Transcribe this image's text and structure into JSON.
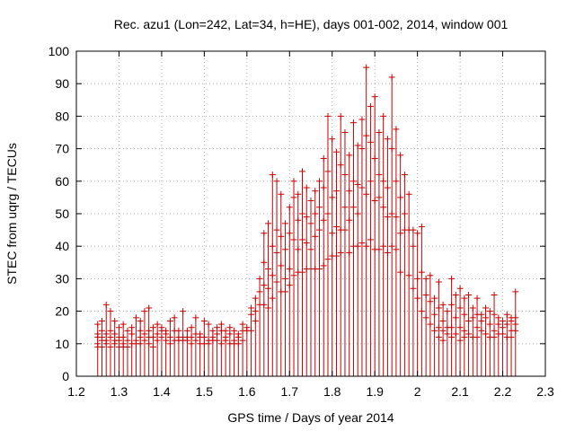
{
  "chart_data": {
    "type": "scatter",
    "style": "impulses with plus markers",
    "title": "Rec. azu1 (Lon=242, Lat=34, h=HE), days 001-002, 2014, window 001",
    "xlabel": "GPS time / Days of year 2014",
    "ylabel": "STEC from uqrg / TECUs",
    "xlim": [
      1.2,
      2.3
    ],
    "ylim": [
      0,
      100
    ],
    "xticks": [
      "1.2",
      "1.3",
      "1.4",
      "1.5",
      "1.6",
      "1.7",
      "1.8",
      "1.9",
      "2",
      "2.1",
      "2.2",
      "2.3"
    ],
    "yticks": [
      "0",
      "10",
      "20",
      "30",
      "40",
      "50",
      "60",
      "70",
      "80",
      "90",
      "100"
    ],
    "grid": true,
    "color": "#cc0000",
    "epochs": [
      {
        "x": 1.25,
        "y": [
          16,
          13,
          10,
          9,
          12
        ]
      },
      {
        "x": 1.26,
        "y": [
          17,
          12,
          9,
          11,
          14
        ]
      },
      {
        "x": 1.27,
        "y": [
          22,
          13,
          10,
          11
        ]
      },
      {
        "x": 1.28,
        "y": [
          20,
          12,
          9,
          14
        ]
      },
      {
        "x": 1.29,
        "y": [
          17,
          11,
          10,
          13
        ]
      },
      {
        "x": 1.3,
        "y": [
          15,
          12,
          9,
          11
        ]
      },
      {
        "x": 1.31,
        "y": [
          16,
          10,
          9,
          12
        ]
      },
      {
        "x": 1.32,
        "y": [
          14,
          11,
          9
        ]
      },
      {
        "x": 1.33,
        "y": [
          15,
          10,
          13
        ]
      },
      {
        "x": 1.34,
        "y": [
          18,
          11,
          10
        ]
      },
      {
        "x": 1.35,
        "y": [
          17,
          12,
          10,
          14
        ]
      },
      {
        "x": 1.36,
        "y": [
          20,
          13,
          11
        ]
      },
      {
        "x": 1.37,
        "y": [
          21,
          14,
          10,
          12
        ]
      },
      {
        "x": 1.38,
        "y": [
          15,
          12,
          9
        ]
      },
      {
        "x": 1.39,
        "y": [
          16,
          13,
          11
        ]
      },
      {
        "x": 1.4,
        "y": [
          15,
          12,
          14
        ]
      },
      {
        "x": 1.41,
        "y": [
          14,
          11,
          13
        ]
      },
      {
        "x": 1.42,
        "y": [
          17,
          12,
          10
        ]
      },
      {
        "x": 1.43,
        "y": [
          18,
          11,
          14
        ]
      },
      {
        "x": 1.44,
        "y": [
          14,
          11,
          12
        ]
      },
      {
        "x": 1.45,
        "y": [
          20,
          12,
          11
        ]
      },
      {
        "x": 1.46,
        "y": [
          14,
          11,
          12
        ]
      },
      {
        "x": 1.47,
        "y": [
          15,
          12,
          10
        ]
      },
      {
        "x": 1.48,
        "y": [
          18,
          11,
          13
        ]
      },
      {
        "x": 1.49,
        "y": [
          13,
          10,
          12
        ]
      },
      {
        "x": 1.5,
        "y": [
          17,
          12,
          10
        ]
      },
      {
        "x": 1.51,
        "y": [
          16,
          11,
          10
        ]
      },
      {
        "x": 1.52,
        "y": [
          14,
          12,
          11
        ]
      },
      {
        "x": 1.53,
        "y": [
          15,
          13,
          11
        ]
      },
      {
        "x": 1.54,
        "y": [
          16,
          14,
          10
        ]
      },
      {
        "x": 1.55,
        "y": [
          14,
          12,
          11
        ]
      },
      {
        "x": 1.56,
        "y": [
          15,
          13,
          10
        ]
      },
      {
        "x": 1.57,
        "y": [
          14,
          11,
          10
        ]
      },
      {
        "x": 1.58,
        "y": [
          13,
          12,
          10
        ]
      },
      {
        "x": 1.59,
        "y": [
          16,
          14,
          11
        ]
      },
      {
        "x": 1.6,
        "y": [
          15,
          14
        ]
      },
      {
        "x": 1.61,
        "y": [
          21,
          19,
          14
        ]
      },
      {
        "x": 1.62,
        "y": [
          24,
          20,
          17
        ]
      },
      {
        "x": 1.63,
        "y": [
          30,
          26,
          22
        ]
      },
      {
        "x": 1.64,
        "y": [
          44,
          35,
          28,
          22
        ]
      },
      {
        "x": 1.65,
        "y": [
          47,
          33,
          27,
          21
        ]
      },
      {
        "x": 1.66,
        "y": [
          62,
          40,
          31,
          24
        ]
      },
      {
        "x": 1.67,
        "y": [
          60,
          45,
          38,
          29
        ]
      },
      {
        "x": 1.68,
        "y": [
          56,
          43,
          34,
          26
        ]
      },
      {
        "x": 1.69,
        "y": [
          47,
          39,
          30,
          26
        ]
      },
      {
        "x": 1.7,
        "y": [
          52,
          44,
          33,
          28
        ]
      },
      {
        "x": 1.71,
        "y": [
          60,
          55,
          42,
          31
        ]
      },
      {
        "x": 1.72,
        "y": [
          56,
          48,
          39,
          32
        ]
      },
      {
        "x": 1.73,
        "y": [
          63,
          50,
          42,
          32
        ]
      },
      {
        "x": 1.74,
        "y": [
          58,
          49,
          41,
          33
        ]
      },
      {
        "x": 1.75,
        "y": [
          54,
          47,
          39,
          33
        ]
      },
      {
        "x": 1.76,
        "y": [
          57,
          50,
          43,
          33
        ]
      },
      {
        "x": 1.77,
        "y": [
          60,
          52,
          45,
          33
        ]
      },
      {
        "x": 1.78,
        "y": [
          67,
          58,
          48,
          34
        ]
      },
      {
        "x": 1.79,
        "y": [
          80,
          63,
          50,
          36
        ]
      },
      {
        "x": 1.8,
        "y": [
          73,
          55,
          44,
          37
        ]
      },
      {
        "x": 1.81,
        "y": [
          69,
          57,
          46,
          37
        ]
      },
      {
        "x": 1.82,
        "y": [
          80,
          65,
          45,
          38
        ]
      },
      {
        "x": 1.83,
        "y": [
          75,
          62,
          52,
          45
        ]
      },
      {
        "x": 1.84,
        "y": [
          68,
          57,
          48,
          38
        ]
      },
      {
        "x": 1.85,
        "y": [
          78,
          60,
          52,
          40
        ]
      },
      {
        "x": 1.86,
        "y": [
          71,
          59,
          50,
          40
        ]
      },
      {
        "x": 1.87,
        "y": [
          79,
          70,
          58,
          41
        ]
      },
      {
        "x": 1.88,
        "y": [
          95,
          74,
          56,
          40
        ]
      },
      {
        "x": 1.89,
        "y": [
          83,
          72,
          60,
          42
        ]
      },
      {
        "x": 1.9,
        "y": [
          86,
          67,
          54,
          39
        ]
      },
      {
        "x": 1.91,
        "y": [
          75,
          62,
          55,
          39
        ]
      },
      {
        "x": 1.92,
        "y": [
          80,
          60,
          52,
          40
        ]
      },
      {
        "x": 1.93,
        "y": [
          73,
          58,
          49,
          38
        ]
      },
      {
        "x": 1.94,
        "y": [
          92,
          70,
          50,
          40
        ]
      },
      {
        "x": 1.95,
        "y": [
          76,
          60,
          49,
          39
        ]
      },
      {
        "x": 1.96,
        "y": [
          68,
          55,
          44,
          32
        ]
      },
      {
        "x": 1.97,
        "y": [
          62,
          50,
          45
        ]
      },
      {
        "x": 1.98,
        "y": [
          56,
          45,
          31
        ]
      },
      {
        "x": 1.99,
        "y": [
          45,
          40,
          27
        ]
      },
      {
        "x": 2.0,
        "y": [
          44,
          30,
          24
        ]
      },
      {
        "x": 2.01,
        "y": [
          46,
          32,
          20
        ]
      },
      {
        "x": 2.02,
        "y": [
          30,
          25,
          18
        ]
      },
      {
        "x": 2.03,
        "y": [
          31,
          23,
          16
        ]
      },
      {
        "x": 2.04,
        "y": [
          24,
          19,
          14
        ]
      },
      {
        "x": 2.05,
        "y": [
          29,
          21,
          15,
          12
        ]
      },
      {
        "x": 2.06,
        "y": [
          22,
          17,
          14,
          11
        ]
      },
      {
        "x": 2.07,
        "y": [
          20,
          15,
          13
        ]
      },
      {
        "x": 2.08,
        "y": [
          30,
          22,
          15,
          12
        ]
      },
      {
        "x": 2.09,
        "y": [
          25,
          18,
          13
        ]
      },
      {
        "x": 2.1,
        "y": [
          27,
          21,
          15,
          11
        ]
      },
      {
        "x": 2.11,
        "y": [
          24,
          19,
          14,
          12
        ]
      },
      {
        "x": 2.12,
        "y": [
          25,
          17,
          13
        ]
      },
      {
        "x": 2.13,
        "y": [
          21,
          18,
          12
        ]
      },
      {
        "x": 2.14,
        "y": [
          24,
          19,
          15,
          12
        ]
      },
      {
        "x": 2.15,
        "y": [
          19,
          17,
          14
        ]
      },
      {
        "x": 2.16,
        "y": [
          21,
          18,
          13
        ]
      },
      {
        "x": 2.17,
        "y": [
          20,
          16,
          12
        ]
      },
      {
        "x": 2.18,
        "y": [
          25,
          19,
          14,
          12
        ]
      },
      {
        "x": 2.19,
        "y": [
          18,
          16,
          13
        ]
      },
      {
        "x": 2.2,
        "y": [
          17,
          15,
          13
        ]
      },
      {
        "x": 2.21,
        "y": [
          19,
          16,
          12
        ]
      },
      {
        "x": 2.22,
        "y": [
          18,
          17,
          14,
          12
        ]
      },
      {
        "x": 2.23,
        "y": [
          26,
          18,
          16,
          14
        ]
      }
    ]
  }
}
